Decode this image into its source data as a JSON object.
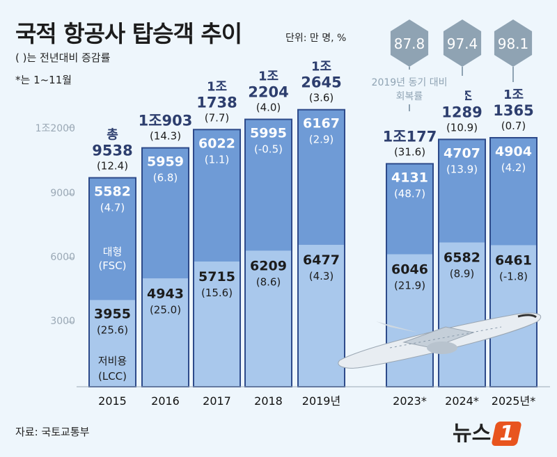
{
  "title": "국적 항공사 탑승객 추이",
  "unit": "단위: 만 명, %",
  "notes": [
    "( )는 전년대비 증감률",
    "*는 1~11월"
  ],
  "source": "자료: 국토교통부",
  "logo": {
    "text": "뉴스",
    "mark": "1"
  },
  "colors": {
    "background": "#eef6fc",
    "fsc": "#6f9bd6",
    "lcc": "#a9c8ec",
    "border": "#2d4a8a",
    "hexagon": "#8fa3b3",
    "total": "#2d3e6e"
  },
  "chart_data": {
    "type": "bar",
    "stacked": true,
    "y_ticks": [
      "3000",
      "6000",
      "9000",
      "1조2000"
    ],
    "categories": [
      "2015",
      "2016",
      "2017",
      "2018",
      "2019년",
      "2023*",
      "2024*",
      "2025년*"
    ],
    "series": [
      {
        "name": "저비용(LCC)",
        "values": [
          3955,
          4943,
          5715,
          6209,
          6477,
          6046,
          6582,
          6461
        ],
        "pct": [
          "(25.6)",
          "(25.0)",
          "(15.6)",
          "(8.6)",
          "(4.3)",
          "(21.9)",
          "(8.9)",
          "(-1.8)"
        ]
      },
      {
        "name": "대형(FSC)",
        "values": [
          5582,
          5959,
          6022,
          5995,
          6167,
          4131,
          4707,
          4904
        ],
        "pct": [
          "(4.7)",
          "(6.8)",
          "(1.1)",
          "(-0.5)",
          "(2.9)",
          "(48.7)",
          "(13.9)",
          "(4.2)"
        ]
      }
    ],
    "totals": {
      "labels": [
        "총|9538",
        "1조903",
        "1조|1738",
        "1조|2204",
        "1조|2645",
        "1조177",
        "1조|1289",
        "1조|1365"
      ],
      "values": [
        9538,
        10903,
        11738,
        12204,
        12645,
        10177,
        11289,
        11365
      ],
      "pct": [
        "(12.4)",
        "(14.3)",
        "(7.7)",
        "(4.0)",
        "(3.6)",
        "(31.6)",
        "(10.9)",
        "(0.7)"
      ]
    },
    "recovery": {
      "label": "2019년 동기 대비|회복률",
      "values": [
        "87.8",
        "97.4",
        "98.1"
      ]
    },
    "segment_labels": {
      "fsc": "대형|(FSC)",
      "lcc": "저비용|(LCC)"
    }
  }
}
